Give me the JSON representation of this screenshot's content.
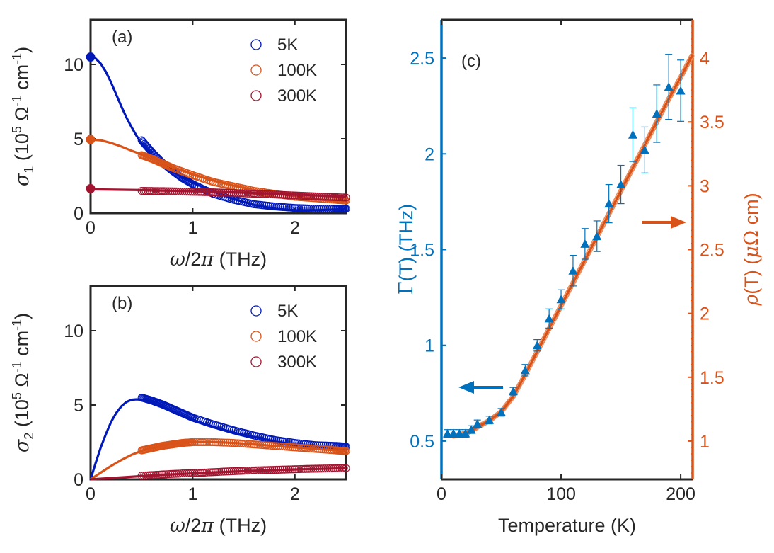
{
  "chart_data": [
    {
      "panel": "(a)",
      "type": "scatter",
      "xlabel": "ω/2π (THz)",
      "ylabel": "σ1 (10^5 Ω^-1 cm^-1)",
      "xlim": [
        0,
        2.5
      ],
      "ylim": [
        0,
        13
      ],
      "xticks": [
        0,
        1,
        2
      ],
      "yticks": [
        0,
        5,
        10
      ],
      "legend_position": "top-right",
      "series": [
        {
          "name": "5K",
          "color": "#0019B8",
          "dc_point": [
            0,
            10.5
          ],
          "x": [
            0.5,
            0.6,
            0.7,
            0.8,
            0.9,
            1.0,
            1.2,
            1.4,
            1.6,
            1.8,
            2.0,
            2.2,
            2.4,
            2.5
          ],
          "y": [
            4.9,
            4.1,
            3.4,
            2.85,
            2.35,
            1.95,
            1.3,
            0.9,
            0.6,
            0.45,
            0.35,
            0.3,
            0.3,
            0.3
          ],
          "fit_x": [
            0,
            0.05,
            0.1,
            0.15,
            0.2,
            0.25,
            0.3,
            0.35,
            0.4,
            0.45,
            0.5,
            0.6,
            0.7,
            0.8,
            0.9,
            1.0,
            1.2,
            1.4,
            1.6,
            1.8,
            2.0,
            2.2,
            2.4,
            2.5
          ],
          "fit_y": [
            10.5,
            10.4,
            10.05,
            9.5,
            8.8,
            8.0,
            7.2,
            6.45,
            5.8,
            5.2,
            4.7,
            3.95,
            3.3,
            2.8,
            2.4,
            2.05,
            1.45,
            0.95,
            0.55,
            0.3,
            0.2,
            0.2,
            0.25,
            0.3
          ]
        },
        {
          "name": "100K",
          "color": "#D95319",
          "dc_point": [
            0,
            4.95
          ],
          "x": [
            0.5,
            0.6,
            0.7,
            0.8,
            1.0,
            1.2,
            1.4,
            1.6,
            1.8,
            2.0,
            2.2,
            2.4,
            2.5
          ],
          "y": [
            3.9,
            3.65,
            3.35,
            3.05,
            2.55,
            2.1,
            1.8,
            1.5,
            1.3,
            1.1,
            1.0,
            0.9,
            0.85
          ],
          "fit_x": [
            0,
            0.1,
            0.2,
            0.3,
            0.4,
            0.5,
            0.6,
            0.7,
            0.8,
            1.0,
            1.2,
            1.4,
            1.6,
            1.8,
            2.0,
            2.2,
            2.4,
            2.5
          ],
          "fit_y": [
            4.95,
            4.9,
            4.72,
            4.48,
            4.2,
            3.95,
            3.65,
            3.35,
            3.1,
            2.6,
            2.2,
            1.85,
            1.55,
            1.35,
            1.15,
            0.95,
            0.8,
            0.75
          ]
        },
        {
          "name": "300K",
          "color": "#A2142F",
          "dc_point": [
            0,
            1.65
          ],
          "x": [
            0.5,
            0.7,
            0.9,
            1.1,
            1.3,
            1.5,
            1.7,
            1.9,
            2.1,
            2.3,
            2.5
          ],
          "y": [
            1.5,
            1.48,
            1.45,
            1.42,
            1.38,
            1.33,
            1.28,
            1.22,
            1.16,
            1.1,
            1.05
          ],
          "fit_x": [
            0,
            0.5,
            1.0,
            1.5,
            2.0,
            2.5
          ],
          "fit_y": [
            1.6,
            1.55,
            1.48,
            1.38,
            1.25,
            1.1
          ]
        }
      ]
    },
    {
      "panel": "(b)",
      "type": "scatter",
      "xlabel": "ω/2π (THz)",
      "ylabel": "σ2 (10^5 Ω^-1 cm^-1)",
      "xlim": [
        0,
        2.5
      ],
      "ylim": [
        0,
        13
      ],
      "xticks": [
        0,
        1,
        2
      ],
      "yticks": [
        0,
        5,
        10
      ],
      "legend_position": "top-right",
      "series": [
        {
          "name": "5K",
          "color": "#0019B8",
          "x": [
            0.5,
            0.6,
            0.7,
            0.8,
            0.9,
            1.0,
            1.2,
            1.4,
            1.6,
            1.8,
            2.0,
            2.2,
            2.4,
            2.5
          ],
          "y": [
            5.5,
            5.3,
            5.05,
            4.75,
            4.45,
            4.15,
            3.7,
            3.3,
            2.95,
            2.65,
            2.45,
            2.3,
            2.25,
            2.2
          ],
          "fit_x": [
            0,
            0.05,
            0.1,
            0.15,
            0.2,
            0.25,
            0.3,
            0.35,
            0.4,
            0.45,
            0.5,
            0.6,
            0.7,
            0.8,
            0.9,
            1.0,
            1.2,
            1.4,
            1.6,
            1.8,
            2.0,
            2.2,
            2.4,
            2.5
          ],
          "fit_y": [
            0,
            1.1,
            2.15,
            3.05,
            3.85,
            4.45,
            4.9,
            5.2,
            5.35,
            5.38,
            5.35,
            5.15,
            4.9,
            4.6,
            4.3,
            4.0,
            3.55,
            3.15,
            2.85,
            2.55,
            2.35,
            2.2,
            2.1,
            2.05
          ]
        },
        {
          "name": "100K",
          "color": "#D95319",
          "x": [
            0.5,
            0.6,
            0.7,
            0.8,
            0.9,
            1.0,
            1.2,
            1.4,
            1.6,
            1.8,
            2.0,
            2.2,
            2.4,
            2.5
          ],
          "y": [
            1.95,
            2.1,
            2.25,
            2.35,
            2.45,
            2.5,
            2.5,
            2.45,
            2.35,
            2.25,
            2.15,
            2.05,
            1.95,
            1.9
          ],
          "fit_x": [
            0,
            0.1,
            0.2,
            0.3,
            0.4,
            0.5,
            0.6,
            0.7,
            0.8,
            0.9,
            1.0,
            1.2,
            1.4,
            1.6,
            1.8,
            2.0,
            2.2,
            2.4,
            2.5
          ],
          "fit_y": [
            0,
            0.45,
            0.9,
            1.3,
            1.65,
            1.92,
            2.12,
            2.28,
            2.4,
            2.48,
            2.52,
            2.52,
            2.45,
            2.35,
            2.25,
            2.15,
            2.05,
            1.95,
            1.9
          ]
        },
        {
          "name": "300K",
          "color": "#A2142F",
          "x": [
            0.5,
            0.7,
            0.9,
            1.1,
            1.3,
            1.5,
            1.7,
            1.9,
            2.1,
            2.3,
            2.5
          ],
          "y": [
            0.25,
            0.33,
            0.4,
            0.45,
            0.52,
            0.58,
            0.62,
            0.66,
            0.7,
            0.73,
            0.75
          ],
          "fit_x": [
            0,
            0.5,
            1.0,
            1.5,
            2.0,
            2.5
          ],
          "fit_y": [
            0,
            0.22,
            0.4,
            0.55,
            0.66,
            0.75
          ]
        }
      ]
    },
    {
      "panel": "(c)",
      "type": "scatter",
      "xlabel": "Temperature (K)",
      "ylabel_left": "Γ(T) (THz)",
      "ylabel_right": "ρ(T) (μΩ cm)",
      "xlim": [
        0,
        210
      ],
      "ylim_left": [
        0.3,
        2.7
      ],
      "ylim_right": [
        0.7,
        4.3
      ],
      "xticks": [
        0,
        100,
        200
      ],
      "yticks_left": [
        0.5,
        1,
        1.5,
        2,
        2.5
      ],
      "yticks_right": [
        1,
        1.5,
        2,
        2.5,
        3,
        3.5,
        4
      ],
      "colors": {
        "left": "#0072BD",
        "right": "#D95319"
      },
      "gamma": {
        "name": "Γ(T)",
        "T": [
          5,
          10,
          15,
          20,
          25,
          30,
          40,
          50,
          60,
          70,
          80,
          90,
          100,
          110,
          120,
          130,
          140,
          150,
          160,
          170,
          180,
          190,
          200
        ],
        "value": [
          0.54,
          0.54,
          0.54,
          0.54,
          0.56,
          0.59,
          0.61,
          0.65,
          0.76,
          0.87,
          1.0,
          1.14,
          1.24,
          1.39,
          1.53,
          1.57,
          1.74,
          1.84,
          2.1,
          2.02,
          2.21,
          2.35,
          2.33
        ],
        "error": [
          0.02,
          0.02,
          0.02,
          0.02,
          0.02,
          0.02,
          0.02,
          0.02,
          0.02,
          0.03,
          0.03,
          0.05,
          0.05,
          0.08,
          0.08,
          0.08,
          0.1,
          0.1,
          0.14,
          0.12,
          0.15,
          0.17,
          0.16
        ]
      },
      "rho": {
        "name": "ρ(T)",
        "T": [
          10,
          15,
          20,
          25,
          30,
          40,
          50,
          60,
          70,
          80,
          90,
          100,
          110,
          120,
          130,
          140,
          150,
          160,
          170,
          180,
          190,
          200,
          210
        ],
        "value": [
          1.04,
          1.05,
          1.06,
          1.08,
          1.11,
          1.16,
          1.23,
          1.35,
          1.52,
          1.7,
          1.88,
          2.06,
          2.24,
          2.42,
          2.6,
          2.78,
          2.96,
          3.14,
          3.32,
          3.5,
          3.68,
          3.85,
          4.03
        ]
      },
      "annotations": [
        "arrow left: Γ(T) axis",
        "arrow right: ρ(T) axis"
      ]
    }
  ],
  "labels": {
    "panel_a": "(a)",
    "panel_b": "(b)",
    "panel_c": "(c)",
    "legend_5k": "5K",
    "legend_100k": "100K",
    "legend_300k": "300K",
    "x_axis_ab": "ω/2π (THz)",
    "y_axis_a": "σ1 (10^5 Ω^-1 cm^-1)",
    "y_axis_b": "σ2 (10^5 Ω^-1 cm^-1)",
    "x_axis_c": "Temperature (K)",
    "y_axis_c_left": "Γ(T) (THz)",
    "y_axis_c_right": "ρ(T) (μΩ cm)"
  }
}
